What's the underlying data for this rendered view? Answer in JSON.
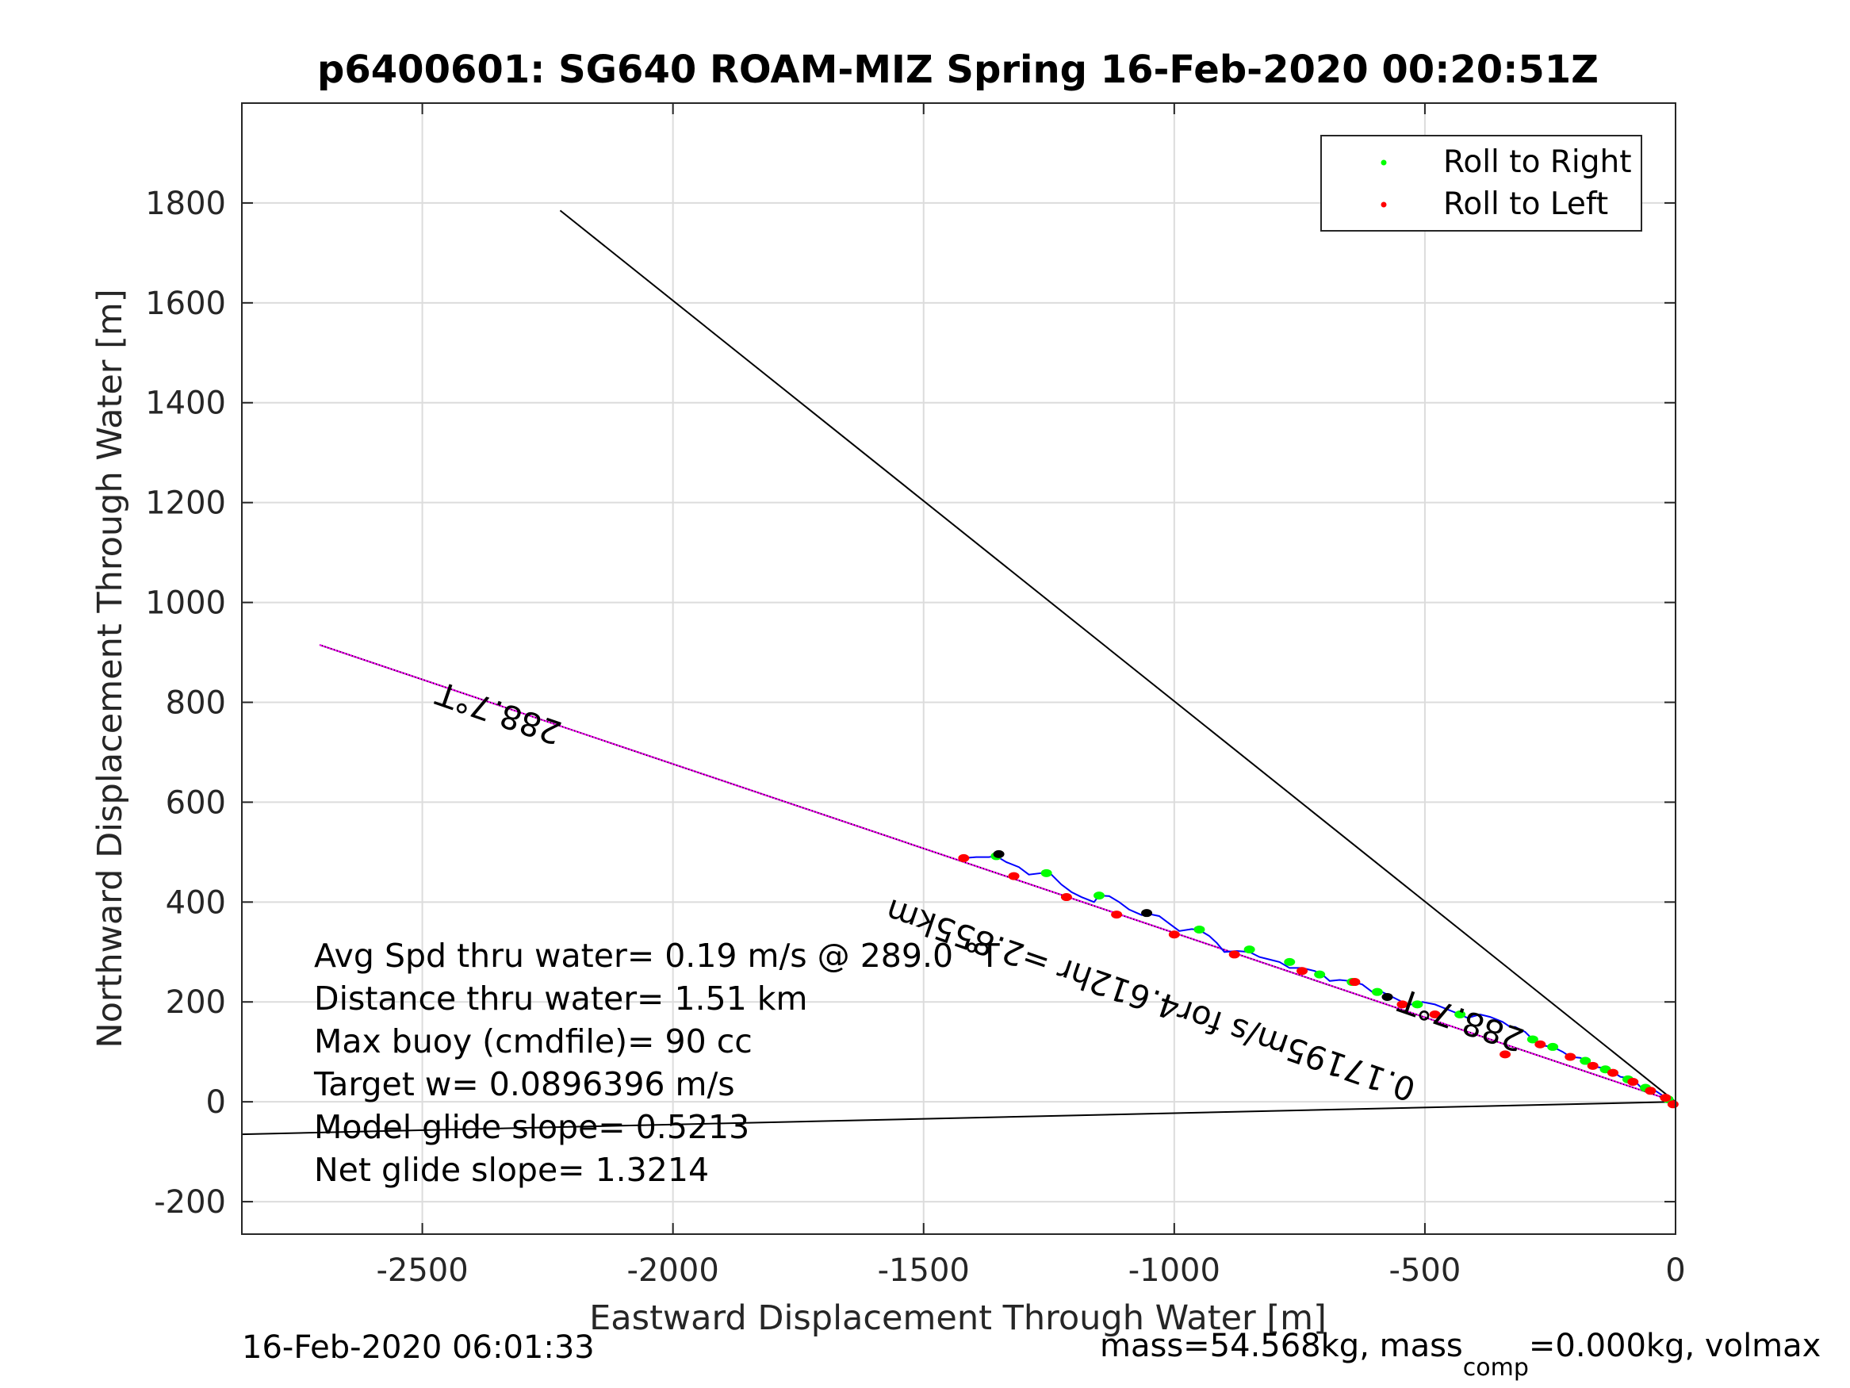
{
  "chart_data": {
    "type": "line",
    "title": "p6400601: SG640 ROAM-MIZ Spring 16-Feb-2020 00:20:51Z",
    "xlabel": "Eastward Displacement Through Water [m]",
    "ylabel": "Northward Displacement Through Water [m]",
    "xlim": [
      -2860,
      0
    ],
    "ylim": [
      -265,
      2000
    ],
    "xticks": [
      -2500,
      -2000,
      -1500,
      -1000,
      -500,
      0
    ],
    "yticks": [
      -200,
      0,
      200,
      400,
      600,
      800,
      1000,
      1200,
      1400,
      1600,
      1800
    ],
    "grid": true,
    "legend": {
      "placement": "top-right",
      "entries": [
        {
          "label": "Roll to Right",
          "color": "#00ff00"
        },
        {
          "label": "Roll to Left",
          "color": "#ff0000"
        }
      ]
    },
    "lines": [
      {
        "role": "heading-line-upper",
        "color": "#000000",
        "x": [
          -2225,
          0
        ],
        "y": [
          1785,
          0
        ]
      },
      {
        "role": "heading-line-lower",
        "color": "#000000",
        "x": [
          -2860,
          0
        ],
        "y": [
          -65,
          0
        ]
      },
      {
        "role": "current-vector",
        "color": "#000000",
        "x": [
          -2705,
          0
        ],
        "y": [
          915,
          0
        ]
      },
      {
        "role": "track-heading",
        "color": "#ff00ff",
        "x": [
          -2705,
          0
        ],
        "y": [
          915,
          0
        ]
      }
    ],
    "track": {
      "color": "#0000ff",
      "x": [
        0,
        -10,
        -25,
        -40,
        -55,
        -70,
        -80,
        -95,
        -110,
        -125,
        -145,
        -160,
        -175,
        -190,
        -210,
        -225,
        -245,
        -260,
        -275,
        -290,
        -300,
        -320,
        -330,
        -345,
        -370,
        -390,
        -415,
        -430,
        -455,
        -480,
        -505,
        -520,
        -535,
        -555,
        -575,
        -590,
        -605,
        -625,
        -650,
        -670,
        -690,
        -705,
        -720,
        -745,
        -770,
        -790,
        -810,
        -830,
        -850,
        -875,
        -900,
        -915,
        -930,
        -950,
        -965,
        -990,
        -1010,
        -1030,
        -1050,
        -1065,
        -1090,
        -1110,
        -1130,
        -1150,
        -1160,
        -1185,
        -1205,
        -1225,
        -1250,
        -1265,
        -1290,
        -1310,
        -1335,
        -1355,
        -1370,
        -1395,
        -1420
      ],
      "y": [
        0,
        2,
        12,
        22,
        30,
        30,
        40,
        48,
        50,
        60,
        68,
        70,
        80,
        88,
        90,
        100,
        110,
        112,
        120,
        130,
        140,
        150,
        150,
        160,
        170,
        175,
        168,
        175,
        185,
        195,
        200,
        195,
        195,
        205,
        215,
        222,
        220,
        235,
        242,
        244,
        242,
        255,
        262,
        268,
        268,
        280,
        285,
        290,
        300,
        302,
        300,
        318,
        332,
        344,
        346,
        342,
        357,
        372,
        376,
        374,
        385,
        400,
        412,
        413,
        400,
        410,
        420,
        435,
        460,
        458,
        455,
        470,
        480,
        492,
        490,
        490,
        488
      ]
    },
    "roll_right": {
      "color": "#00ff00",
      "x": [
        -15,
        -60,
        -95,
        -140,
        -180,
        -245,
        -285,
        -430,
        -515,
        -595,
        -645,
        -710,
        -770,
        -850,
        -950,
        -1150,
        -1255,
        -1355
      ],
      "y": [
        5,
        28,
        45,
        65,
        82,
        110,
        125,
        175,
        195,
        220,
        240,
        255,
        280,
        305,
        345,
        413,
        458,
        492
      ]
    },
    "roll_left": {
      "color": "#ff0000",
      "x": [
        -5,
        -20,
        -50,
        -85,
        -125,
        -165,
        -210,
        -270,
        -340,
        -480,
        -545,
        -640,
        -745,
        -880,
        -1000,
        -1115,
        -1215,
        -1320,
        -1420
      ],
      "y": [
        -5,
        8,
        22,
        40,
        58,
        72,
        90,
        115,
        95,
        175,
        195,
        240,
        262,
        295,
        335,
        375,
        410,
        452,
        488
      ]
    },
    "dive_markers": {
      "color": "#000000",
      "x": [
        -575,
        -1055,
        -1350
      ],
      "y": [
        210,
        378,
        496
      ]
    },
    "annotations": [
      {
        "text": "288.7°T",
        "x": -2340,
        "y": 800,
        "angle_deg": 199
      },
      {
        "text": "0.17195m/s for4.612hr =2.855km",
        "x": -1040,
        "y": 225,
        "angle_deg": 199
      },
      {
        "text": "288.7°T",
        "x": -420,
        "y": 185,
        "angle_deg": 199
      }
    ],
    "stats": [
      "Avg Spd thru water=  0.19 m/s @ 289.0 °T",
      "Distance thru water=  1.51 km",
      "Max buoy (cmdfile)= 90 cc",
      "Target w= 0.0896396 m/s",
      "Model glide slope= 0.5213",
      "Net glide slope= 1.3214"
    ]
  },
  "footer": {
    "date": "16-Feb-2020 06:01:33",
    "mass_text": "mass=54.568kg, mass",
    "mass_sub": "comp",
    "mass_tail": "=0.000kg, volmax"
  }
}
